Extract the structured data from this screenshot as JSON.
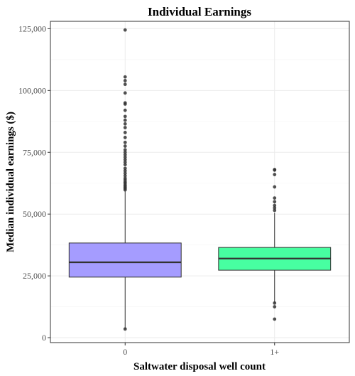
{
  "chart_data": {
    "type": "boxplot",
    "title": "Individual Earnings",
    "xlabel": "Saltwater disposal well count",
    "ylabel": "Median individual earnings ($)",
    "ylim": [
      -2000,
      128000
    ],
    "y_ticks": [
      0,
      25000,
      50000,
      75000,
      100000,
      125000
    ],
    "y_tick_labels": [
      "0",
      "25,000",
      "50,000",
      "75,000",
      "100,000",
      "125,000"
    ],
    "grid": true,
    "categories": [
      "0",
      "1+"
    ],
    "boxes": [
      {
        "category": "0",
        "color": "#a59cff",
        "q1": 24500,
        "median": 30500,
        "q3": 38300,
        "whisker_low": 3500,
        "whisker_high": 59300,
        "outliers": [
          3500,
          59800,
          60300,
          60800,
          61300,
          61800,
          62500,
          63000,
          63800,
          64500,
          65500,
          66500,
          67500,
          68500,
          70000,
          71000,
          72000,
          73000,
          74000,
          75000,
          76000,
          77500,
          79000,
          81000,
          83000,
          85000,
          86500,
          88000,
          89500,
          92000,
          94500,
          95000,
          99000,
          102500,
          104000,
          105500,
          124500
        ]
      },
      {
        "category": "1+",
        "color": "#47ffa1",
        "q1": 27300,
        "median": 32000,
        "q3": 36500,
        "whisker_low": 14000,
        "whisker_high": 50500,
        "outliers": [
          7500,
          12500,
          14000,
          51500,
          52500,
          53500,
          55000,
          56500,
          61000,
          66000,
          67800,
          68000
        ]
      }
    ]
  }
}
